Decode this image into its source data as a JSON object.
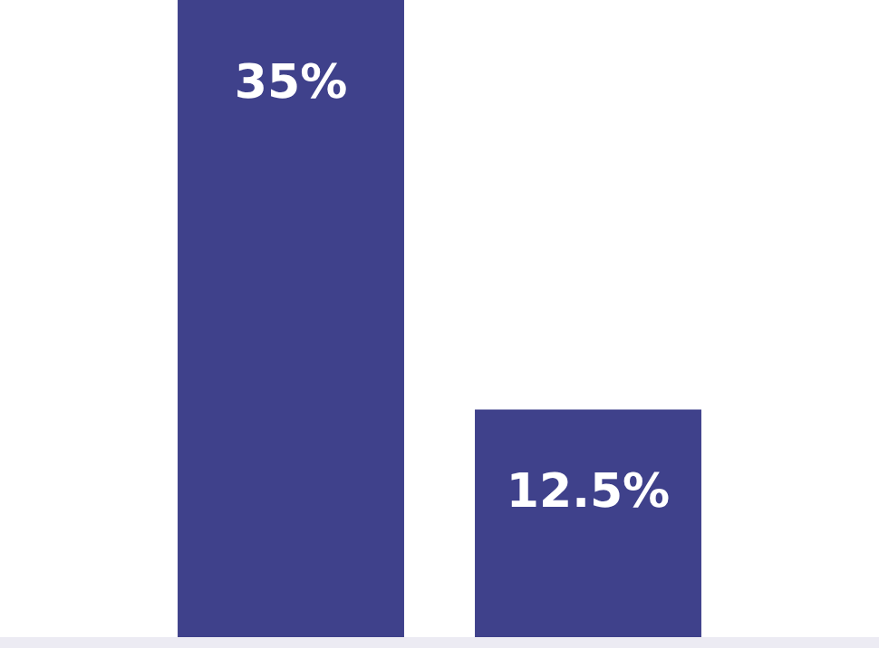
{
  "chart_data": {
    "type": "bar",
    "categories": [
      null,
      null
    ],
    "values": [
      35,
      12.5
    ],
    "color": "#3f418b",
    "value_labels": [
      "35%",
      "12.5%"
    ]
  }
}
